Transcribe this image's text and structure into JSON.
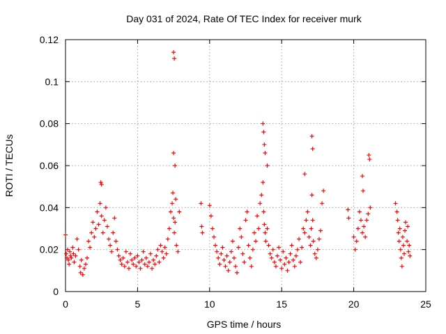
{
  "chart_data": {
    "type": "scatter",
    "title": "Day 031 of 2024, Rate Of TEC Index for receiver murk",
    "xlabel": "GPS time / hours",
    "ylabel": "ROTI / TECUs",
    "xlim": [
      0,
      25
    ],
    "ylim": [
      0,
      0.12
    ],
    "xticks": [
      0,
      5,
      10,
      15,
      20,
      25
    ],
    "yticks": [
      0,
      0.02,
      0.04,
      0.06,
      0.08,
      0.1,
      0.12
    ],
    "xtick_labels": [
      "0",
      "5",
      "10",
      "15",
      "20",
      "25"
    ],
    "ytick_labels": [
      "0",
      "0.02",
      "0.04",
      "0.06",
      "0.08",
      "0.1",
      "0.12"
    ],
    "grid": true,
    "marker": "+",
    "color": "#ff0000",
    "series": [
      {
        "x": [
          0.0,
          0.05,
          0.1,
          0.15,
          0.2,
          0.25,
          0.3,
          0.35,
          0.4,
          0.5,
          0.55,
          0.6,
          0.7,
          0.8,
          0.9,
          1.0,
          1.05,
          1.1,
          1.2,
          1.3,
          1.4,
          1.5,
          1.6,
          1.7,
          1.8,
          1.9,
          2.0,
          2.1,
          2.2,
          2.3,
          2.4,
          2.5,
          2.6,
          2.7,
          2.8,
          2.9,
          3.0,
          3.1,
          3.2,
          3.3,
          3.4,
          3.5,
          3.6,
          3.7,
          3.8,
          3.9,
          4.0,
          4.1,
          4.2,
          4.3,
          4.4,
          4.5,
          4.6,
          4.7,
          4.8,
          4.9,
          5.0,
          5.1,
          5.2,
          5.3,
          5.4,
          5.5,
          5.6,
          5.7,
          5.8,
          5.9,
          6.0,
          6.1,
          6.2,
          6.3,
          6.4,
          6.5,
          6.6,
          6.7,
          6.8,
          6.9,
          7.0,
          7.1,
          7.2,
          7.3,
          7.4,
          7.45,
          7.5,
          7.55,
          7.6,
          7.7,
          7.8,
          7.9,
          2.45,
          2.5,
          7.5,
          7.55,
          7.5,
          7.6,
          7.65
        ],
        "y": [
          0.027,
          0.018,
          0.016,
          0.02,
          0.015,
          0.013,
          0.019,
          0.017,
          0.016,
          0.021,
          0.018,
          0.014,
          0.017,
          0.025,
          0.02,
          0.012,
          0.009,
          0.015,
          0.008,
          0.011,
          0.013,
          0.016,
          0.024,
          0.021,
          0.028,
          0.033,
          0.026,
          0.03,
          0.038,
          0.032,
          0.042,
          0.036,
          0.028,
          0.034,
          0.04,
          0.031,
          0.025,
          0.022,
          0.019,
          0.028,
          0.035,
          0.024,
          0.02,
          0.017,
          0.015,
          0.013,
          0.016,
          0.012,
          0.019,
          0.014,
          0.011,
          0.018,
          0.015,
          0.013,
          0.016,
          0.012,
          0.017,
          0.014,
          0.011,
          0.015,
          0.019,
          0.013,
          0.016,
          0.012,
          0.014,
          0.018,
          0.011,
          0.015,
          0.013,
          0.017,
          0.02,
          0.014,
          0.022,
          0.019,
          0.016,
          0.021,
          0.018,
          0.025,
          0.03,
          0.038,
          0.042,
          0.047,
          0.035,
          0.028,
          0.033,
          0.022,
          0.019,
          0.038,
          0.052,
          0.051,
          0.114,
          0.111,
          0.066,
          0.06,
          0.044
        ]
      },
      {
        "x": [
          9.4,
          9.45,
          9.5,
          10.0,
          10.1,
          10.2,
          10.3,
          10.4,
          10.5,
          10.6,
          10.7,
          10.8,
          10.9,
          11.0,
          11.1,
          11.2,
          11.3,
          11.4,
          11.5,
          11.6,
          11.7,
          11.8,
          11.9,
          12.0,
          12.1,
          12.2,
          12.3,
          12.4,
          12.5,
          12.6,
          12.7,
          12.8,
          12.9,
          13.0,
          13.1,
          13.2,
          13.3,
          13.4,
          13.5,
          13.6,
          13.7,
          13.75,
          13.8,
          13.85,
          13.9,
          14.0,
          14.1,
          14.2,
          14.3,
          14.4,
          14.5,
          14.6,
          14.7,
          14.8,
          14.9,
          15.0,
          15.1,
          15.2,
          15.3,
          15.4,
          15.5,
          15.6,
          15.7,
          15.8,
          15.9,
          16.0,
          16.1,
          16.2,
          16.3,
          16.4,
          16.5,
          16.6,
          16.7,
          16.8,
          16.9,
          17.0,
          17.05,
          17.1,
          17.15,
          17.2,
          17.3,
          17.4,
          17.5,
          17.6,
          17.7,
          17.8,
          17.9,
          13.7,
          13.75,
          13.8,
          13.85,
          14.0,
          17.1,
          17.15,
          16.6
        ],
        "y": [
          0.042,
          0.031,
          0.028,
          0.041,
          0.036,
          0.03,
          0.026,
          0.022,
          0.019,
          0.016,
          0.013,
          0.018,
          0.021,
          0.015,
          0.012,
          0.017,
          0.01,
          0.014,
          0.019,
          0.024,
          0.016,
          0.012,
          0.009,
          0.021,
          0.03,
          0.026,
          0.018,
          0.014,
          0.034,
          0.038,
          0.022,
          0.016,
          0.012,
          0.02,
          0.028,
          0.024,
          0.036,
          0.03,
          0.042,
          0.046,
          0.052,
          0.038,
          0.032,
          0.028,
          0.024,
          0.03,
          0.022,
          0.018,
          0.016,
          0.02,
          0.014,
          0.012,
          0.017,
          0.021,
          0.015,
          0.011,
          0.019,
          0.013,
          0.016,
          0.01,
          0.014,
          0.018,
          0.022,
          0.015,
          0.012,
          0.017,
          0.02,
          0.025,
          0.014,
          0.021,
          0.03,
          0.028,
          0.034,
          0.038,
          0.026,
          0.022,
          0.03,
          0.046,
          0.034,
          0.024,
          0.018,
          0.016,
          0.02,
          0.025,
          0.029,
          0.042,
          0.048,
          0.08,
          0.076,
          0.07,
          0.066,
          0.06,
          0.074,
          0.068,
          0.056
        ]
      },
      {
        "x": [
          19.6,
          19.65,
          20.0,
          20.1,
          20.2,
          20.3,
          20.4,
          20.5,
          20.6,
          20.7,
          20.8,
          20.9,
          21.0,
          21.05,
          21.1,
          21.15,
          20.6,
          20.65
        ],
        "y": [
          0.039,
          0.035,
          0.026,
          0.02,
          0.024,
          0.03,
          0.038,
          0.034,
          0.028,
          0.031,
          0.026,
          0.034,
          0.037,
          0.065,
          0.063,
          0.04,
          0.055,
          0.048
        ]
      },
      {
        "x": [
          22.9,
          23.0,
          23.05,
          23.1,
          23.15,
          23.2,
          23.25,
          23.3,
          23.35,
          23.4,
          23.45,
          23.5,
          23.55,
          23.6,
          23.7,
          23.75,
          23.8,
          23.85,
          23.9
        ],
        "y": [
          0.042,
          0.038,
          0.034,
          0.028,
          0.024,
          0.03,
          0.02,
          0.016,
          0.012,
          0.026,
          0.022,
          0.018,
          0.029,
          0.033,
          0.024,
          0.031,
          0.019,
          0.022,
          0.017
        ]
      }
    ]
  }
}
